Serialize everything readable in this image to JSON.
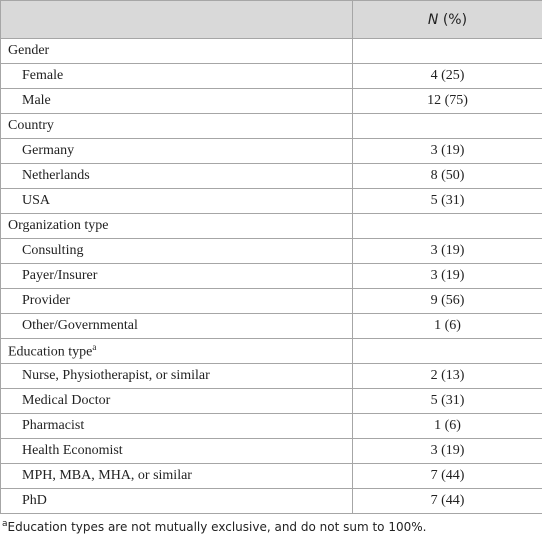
{
  "table": {
    "header": {
      "italic": "N",
      "rest": "(%)"
    },
    "groups": [
      {
        "label": "Gender",
        "items": [
          {
            "label": "Female",
            "value": "4 (25)"
          },
          {
            "label": "Male",
            "value": "12 (75)"
          }
        ]
      },
      {
        "label": "Country",
        "items": [
          {
            "label": "Germany",
            "value": "3 (19)"
          },
          {
            "label": "Netherlands",
            "value": "8 (50)"
          },
          {
            "label": "USA",
            "value": "5 (31)"
          }
        ]
      },
      {
        "label": "Organization type",
        "items": [
          {
            "label": "Consulting",
            "value": "3 (19)"
          },
          {
            "label": "Payer/Insurer",
            "value": "3 (19)"
          },
          {
            "label": "Provider",
            "value": "9 (56)"
          },
          {
            "label": "Other/Governmental",
            "value": "1 (6)"
          }
        ]
      },
      {
        "label": "Education type",
        "mark": "a",
        "items": [
          {
            "label": "Nurse, Physiotherapist, or similar",
            "value": "2 (13)"
          },
          {
            "label": "Medical Doctor",
            "value": "5 (31)"
          },
          {
            "label": "Pharmacist",
            "value": "1 (6)"
          },
          {
            "label": "Health Economist",
            "value": "3 (19)"
          },
          {
            "label": "MPH, MBA, MHA, or similar",
            "value": "7 (44)"
          },
          {
            "label": "PhD",
            "value": "7 (44)"
          }
        ]
      }
    ]
  },
  "footnote": {
    "mark": "a",
    "text": "Education types are not mutually exclusive, and do not sum to 100%."
  }
}
